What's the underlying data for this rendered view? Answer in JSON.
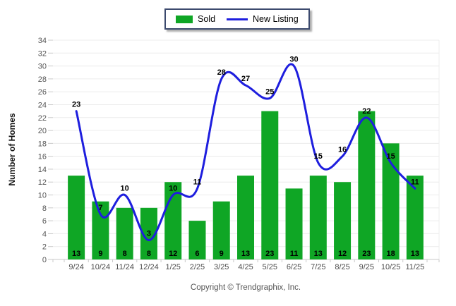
{
  "chart_data": {
    "type": "combo_bar_line",
    "title": "",
    "categories": [
      "9/24",
      "10/24",
      "11/24",
      "12/24",
      "1/25",
      "2/25",
      "3/25",
      "4/25",
      "5/25",
      "6/25",
      "7/25",
      "8/25",
      "9/25",
      "10/25",
      "11/25"
    ],
    "series": [
      {
        "name": "Sold",
        "type": "bar",
        "color": "#0fa625",
        "values": [
          13,
          9,
          8,
          8,
          12,
          6,
          9,
          13,
          23,
          11,
          13,
          12,
          23,
          18,
          13
        ]
      },
      {
        "name": "New Listing",
        "type": "line",
        "color": "#1e1ede",
        "values": [
          23,
          7,
          10,
          3,
          10,
          11,
          28,
          27,
          25,
          30,
          15,
          16,
          22,
          15,
          11
        ]
      }
    ],
    "xlabel": "",
    "ylabel": "Number of Homes",
    "ylim": [
      0,
      34
    ],
    "ytick_step": 2,
    "grid": true,
    "value_labels": true,
    "legend_position": "top-center"
  },
  "legend_border_color": "#3c4a6e",
  "footer": {
    "copyright": "Copyright © Trendgraphix, Inc."
  }
}
